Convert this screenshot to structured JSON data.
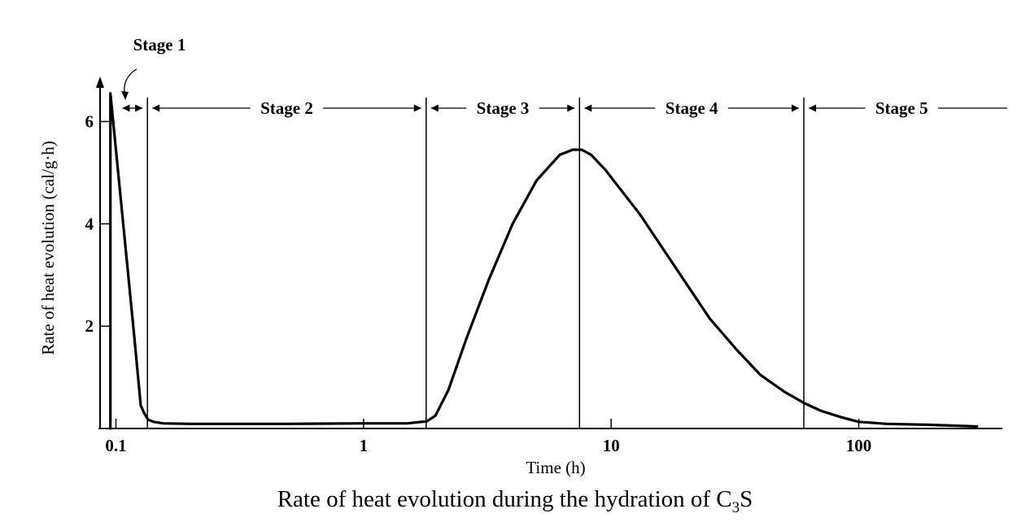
{
  "chart_data": {
    "type": "line",
    "title": "",
    "xlabel": "Time (h)",
    "ylabel": "Rate of heat evolution (cal/g·h)",
    "xscale": "log",
    "xlim": [
      0.085,
      380
    ],
    "ylim": [
      0,
      6.85
    ],
    "x_ticks": [
      0.1,
      1,
      10,
      100
    ],
    "x_tick_labels": [
      "0.1",
      "1",
      "10",
      "100"
    ],
    "y_ticks": [
      2,
      4,
      6
    ],
    "y_tick_labels": [
      "2",
      "4",
      "6"
    ],
    "grid": false,
    "legend": "none",
    "series": [
      {
        "x": [
          0.095,
          0.106,
          0.118,
          0.126,
          0.13,
          0.135,
          0.142,
          0.155,
          0.2,
          0.5,
          1.0,
          1.5,
          1.8,
          1.95,
          2.2,
          2.6,
          3.2,
          4.0,
          5.0,
          6.2,
          7.0,
          7.6,
          8.3,
          9.5,
          11,
          13,
          16,
          20,
          25,
          32,
          40,
          50,
          60,
          70,
          85,
          100,
          130,
          200,
          300
        ],
        "y": [
          6.55,
          4.2,
          1.9,
          0.45,
          0.3,
          0.17,
          0.13,
          0.1,
          0.09,
          0.09,
          0.1,
          0.1,
          0.14,
          0.25,
          0.75,
          1.75,
          2.9,
          4.0,
          4.85,
          5.35,
          5.45,
          5.45,
          5.35,
          5.05,
          4.65,
          4.2,
          3.55,
          2.85,
          2.15,
          1.55,
          1.05,
          0.72,
          0.5,
          0.35,
          0.22,
          0.13,
          0.09,
          0.07,
          0.04
        ]
      }
    ],
    "stages": [
      {
        "label": "Stage 1",
        "from": 0.1,
        "to": 0.134
      },
      {
        "label": "Stage 2",
        "from": 0.134,
        "to": 1.79
      },
      {
        "label": "Stage 3",
        "from": 1.79,
        "to": 7.45
      },
      {
        "label": "Stage 4",
        "from": 7.45,
        "to": 60
      },
      {
        "label": "Stage 5",
        "from": 60,
        "to": 370
      }
    ],
    "stage_boundaries": [
      0.134,
      1.79,
      7.45,
      60
    ]
  },
  "caption": {
    "prefix": "Rate of heat evolution during the hydration of C",
    "subscript": "3",
    "suffix": "S"
  }
}
